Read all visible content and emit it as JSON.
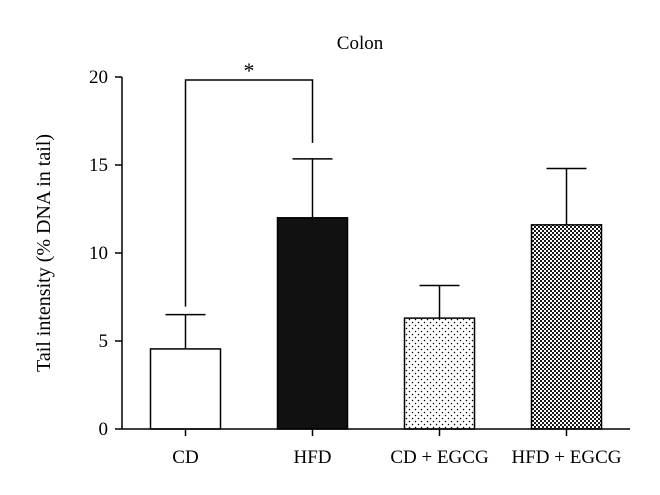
{
  "chart_data": {
    "type": "bar",
    "title": "Colon",
    "xlabel": "",
    "ylabel": "Tail intensity (% DNA in tail)",
    "ylim": [
      0,
      20
    ],
    "yticks": [
      0,
      5,
      10,
      15,
      20
    ],
    "categories": [
      "CD",
      "HFD",
      "CD + EGCG",
      "HFD + EGCG"
    ],
    "values": [
      4.55,
      12.0,
      6.3,
      11.6
    ],
    "errors": [
      1.95,
      3.35,
      1.85,
      3.2
    ],
    "fills": [
      "white",
      "solid-black",
      "fine-dots",
      "checkerboard"
    ],
    "grid": false,
    "legend": "none",
    "significance": [
      {
        "from": 0,
        "to": 1,
        "label": "*"
      }
    ]
  }
}
